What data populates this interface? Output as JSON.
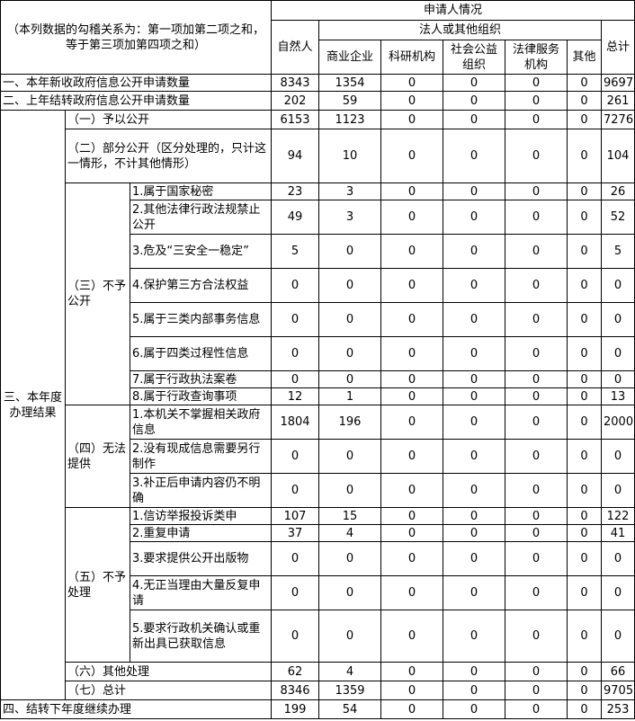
{
  "header": {
    "note": "（本列数据的勾稽关系为：第一项加第二项之和，等于第三项加第四项之和）",
    "applicant": "申请人情况",
    "natural_person": "自然人",
    "legal_org": "法人或其他组织",
    "commercial": "商业企业",
    "research": "科研机构",
    "public_welfare": "社会公益组织",
    "legal_service": "法律服务机构",
    "other": "其他",
    "total": "总计"
  },
  "sections": {
    "s3": "三、本年度办理结果",
    "g3": "（三）不予公开",
    "g4": "（四）无法提供",
    "g5": "（五）不予处理"
  },
  "rows": [
    {
      "label": "一、本年新收政府信息公开申请数量",
      "values": [
        "8343",
        "1354",
        "0",
        "0",
        "0",
        "0",
        "9697"
      ]
    },
    {
      "label": "二、上年结转政府信息公开申请数量",
      "values": [
        "202",
        "59",
        "0",
        "0",
        "0",
        "0",
        "261"
      ]
    },
    {
      "label": "（一）予以公开",
      "values": [
        "6153",
        "1123",
        "0",
        "0",
        "0",
        "0",
        "7276"
      ]
    },
    {
      "label": "（二）部分公开（区分处理的，只计这一情形，不计其他情形）",
      "values": [
        "94",
        "10",
        "0",
        "0",
        "0",
        "0",
        "104"
      ]
    },
    {
      "label": "1.属于国家秘密",
      "values": [
        "23",
        "3",
        "0",
        "0",
        "0",
        "0",
        "26"
      ]
    },
    {
      "label": "2.其他法律行政法规禁止公开",
      "values": [
        "49",
        "3",
        "0",
        "0",
        "0",
        "0",
        "52"
      ]
    },
    {
      "label": "3.危及“三安全一稳定”",
      "values": [
        "5",
        "0",
        "0",
        "0",
        "0",
        "0",
        "5"
      ]
    },
    {
      "label": "4.保护第三方合法权益",
      "values": [
        "0",
        "0",
        "0",
        "0",
        "0",
        "0",
        "0"
      ]
    },
    {
      "label": "5.属于三类内部事务信息",
      "values": [
        "0",
        "0",
        "0",
        "0",
        "0",
        "0",
        "0"
      ]
    },
    {
      "label": "6.属于四类过程性信息",
      "values": [
        "0",
        "0",
        "0",
        "0",
        "0",
        "0",
        "0"
      ]
    },
    {
      "label": "7.属于行政执法案卷",
      "values": [
        "0",
        "0",
        "0",
        "0",
        "0",
        "0",
        "0"
      ]
    },
    {
      "label": "8.属于行政查询事项",
      "values": [
        "12",
        "1",
        "0",
        "0",
        "0",
        "0",
        "13"
      ]
    },
    {
      "label": "1.本机关不掌握相关政府信息",
      "values": [
        "1804",
        "196",
        "0",
        "0",
        "0",
        "0",
        "2000"
      ]
    },
    {
      "label": "2.没有现成信息需要另行制作",
      "values": [
        "0",
        "0",
        "0",
        "0",
        "0",
        "0",
        "0"
      ]
    },
    {
      "label": "3.补正后申请内容仍不明确",
      "values": [
        "0",
        "0",
        "0",
        "0",
        "0",
        "0",
        "0"
      ]
    },
    {
      "label": "1.信访举报投诉类申",
      "values": [
        "107",
        "15",
        "0",
        "0",
        "0",
        "0",
        "122"
      ]
    },
    {
      "label": "2.重复申请",
      "values": [
        "37",
        "4",
        "0",
        "0",
        "0",
        "0",
        "41"
      ]
    },
    {
      "label": "3.要求提供公开出版物",
      "values": [
        "0",
        "0",
        "0",
        "0",
        "0",
        "0",
        "0"
      ]
    },
    {
      "label": "4.无正当理由大量反复申请",
      "values": [
        "0",
        "0",
        "0",
        "0",
        "0",
        "0",
        "0"
      ]
    },
    {
      "label": "5.要求行政机关确认或重新出具已获取信息",
      "values": [
        "0",
        "0",
        "0",
        "0",
        "0",
        "0",
        "0"
      ]
    },
    {
      "label": "（六）其他处理",
      "values": [
        "62",
        "4",
        "0",
        "0",
        "0",
        "0",
        "66"
      ]
    },
    {
      "label": "（七）总计",
      "values": [
        "8346",
        "1359",
        "0",
        "0",
        "0",
        "0",
        "9705"
      ]
    },
    {
      "label": "四、结转下年度继续办理",
      "values": [
        "199",
        "54",
        "0",
        "0",
        "0",
        "0",
        "253"
      ]
    }
  ]
}
